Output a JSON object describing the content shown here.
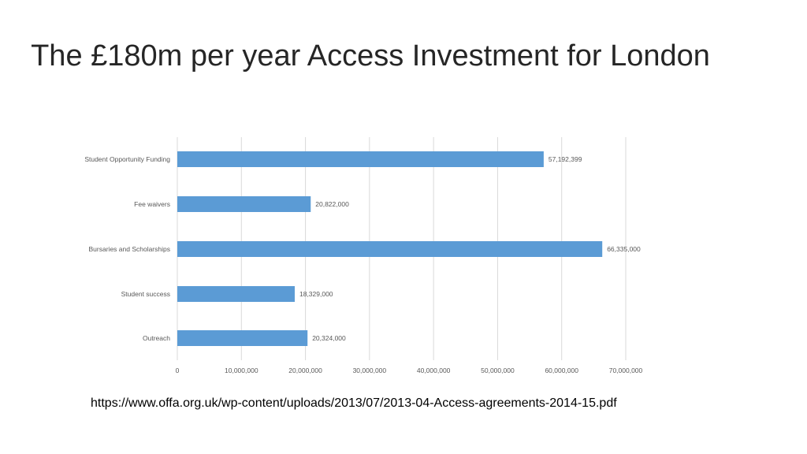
{
  "slide": {
    "title": "The £180m per year Access Investment for London",
    "source_url": "https://www.offa.org.uk/wp-content/uploads/2013/07/2013-04-Access-agreements-2014-15.pdf"
  },
  "chart_data": {
    "type": "bar",
    "orientation": "horizontal",
    "title": "",
    "xlabel": "",
    "ylabel": "",
    "categories": [
      "Student Opportunity Funding",
      "Fee waivers",
      "Bursaries and Scholarships",
      "Student success",
      "Outreach"
    ],
    "values": [
      57192399,
      20822000,
      66335000,
      18329000,
      20324000
    ],
    "data_labels": [
      "57,192,399",
      "20,822,000",
      "66,335,000",
      "18,329,000",
      "20,324,000"
    ],
    "xlim": [
      0,
      70000000
    ],
    "x_ticks": [
      0,
      10000000,
      20000000,
      30000000,
      40000000,
      50000000,
      60000000,
      70000000
    ],
    "x_tick_labels": [
      "0",
      "10,000,000",
      "20,000,000",
      "30,000,000",
      "40,000,000",
      "50,000,000",
      "60,000,000",
      "70,000,000"
    ],
    "grid": true,
    "legend": "none",
    "bar_color": "#5B9BD5",
    "grid_color": "#D9D9D9"
  }
}
